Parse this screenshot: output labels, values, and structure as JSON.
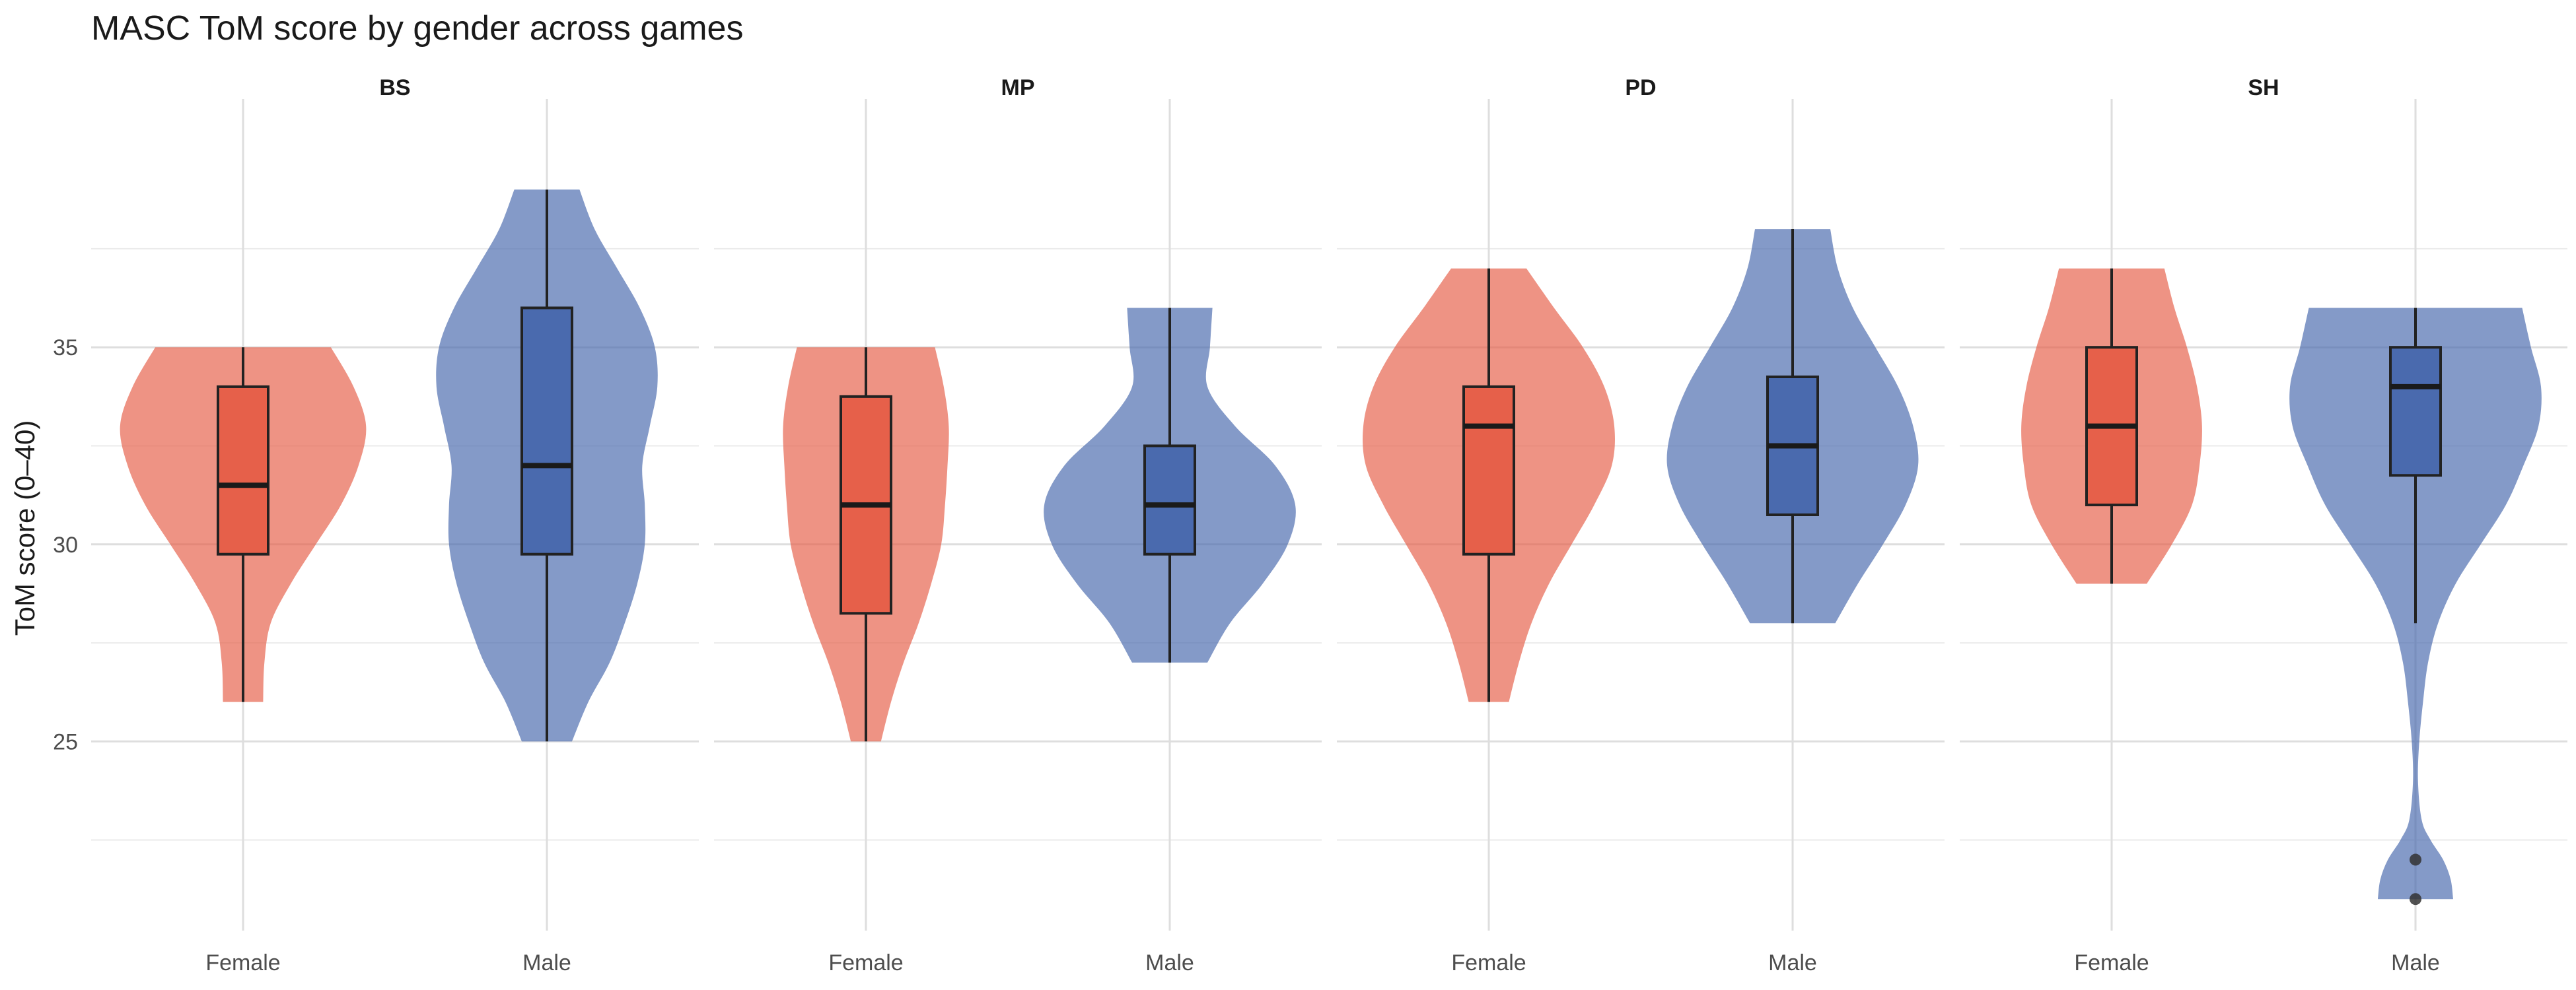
{
  "chart_data": {
    "type": "violin",
    "title": "MASC ToM score by gender across games",
    "ylabel": "ToM score (0–40)",
    "xlabel": "",
    "ylim": [
      20.2,
      41.3
    ],
    "yticks": [
      25,
      30,
      35
    ],
    "grid": true,
    "legend": "none",
    "categories": [
      "Female",
      "Male"
    ],
    "colors": {
      "Female": "#E6604A",
      "Male": "#4A6AAE"
    },
    "panels": [
      {
        "name": "BS",
        "groups": [
          {
            "category": "Female",
            "min": 26,
            "q1": 29.75,
            "median": 31.5,
            "q3": 34,
            "max": 35,
            "outliers": [],
            "density": [
              [
                26,
                0.16
              ],
              [
                27,
                0.17
              ],
              [
                28,
                0.22
              ],
              [
                29,
                0.38
              ],
              [
                30,
                0.58
              ],
              [
                31,
                0.78
              ],
              [
                32,
                0.92
              ],
              [
                33,
                0.98
              ],
              [
                34,
                0.88
              ],
              [
                35,
                0.7
              ]
            ]
          },
          {
            "category": "Male",
            "min": 25,
            "q1": 29.75,
            "median": 32,
            "q3": 36,
            "max": 39,
            "outliers": [],
            "density": [
              [
                25,
                0.2
              ],
              [
                26,
                0.33
              ],
              [
                27,
                0.5
              ],
              [
                28,
                0.62
              ],
              [
                29,
                0.72
              ],
              [
                30,
                0.78
              ],
              [
                31,
                0.78
              ],
              [
                32,
                0.76
              ],
              [
                33,
                0.82
              ],
              [
                34,
                0.88
              ],
              [
                35,
                0.86
              ],
              [
                36,
                0.74
              ],
              [
                37,
                0.56
              ],
              [
                38,
                0.38
              ],
              [
                39,
                0.26
              ]
            ]
          }
        ]
      },
      {
        "name": "MP",
        "groups": [
          {
            "category": "Female",
            "min": 25,
            "q1": 28.25,
            "median": 31,
            "q3": 33.75,
            "max": 35,
            "outliers": [],
            "density": [
              [
                25,
                0.12
              ],
              [
                26,
                0.2
              ],
              [
                27,
                0.3
              ],
              [
                28,
                0.42
              ],
              [
                29,
                0.52
              ],
              [
                30,
                0.6
              ],
              [
                31,
                0.63
              ],
              [
                32,
                0.65
              ],
              [
                33,
                0.66
              ],
              [
                34,
                0.62
              ],
              [
                35,
                0.55
              ]
            ]
          },
          {
            "category": "Male",
            "min": 27,
            "q1": 29.75,
            "median": 31,
            "q3": 32.5,
            "max": 36,
            "outliers": [],
            "density": [
              [
                27,
                0.3
              ],
              [
                28,
                0.48
              ],
              [
                29,
                0.74
              ],
              [
                30,
                0.94
              ],
              [
                31,
                1.0
              ],
              [
                32,
                0.84
              ],
              [
                33,
                0.52
              ],
              [
                34,
                0.3
              ],
              [
                35,
                0.32
              ],
              [
                36,
                0.34
              ]
            ]
          }
        ]
      },
      {
        "name": "PD",
        "groups": [
          {
            "category": "Female",
            "min": 26,
            "q1": 29.75,
            "median": 33,
            "q3": 34,
            "max": 37,
            "outliers": [],
            "density": [
              [
                26,
                0.16
              ],
              [
                27,
                0.24
              ],
              [
                28,
                0.34
              ],
              [
                29,
                0.48
              ],
              [
                30,
                0.66
              ],
              [
                31,
                0.84
              ],
              [
                32,
                0.98
              ],
              [
                33,
                1.0
              ],
              [
                34,
                0.92
              ],
              [
                35,
                0.75
              ],
              [
                36,
                0.52
              ],
              [
                37,
                0.3
              ]
            ]
          },
          {
            "category": "Male",
            "min": 28,
            "q1": 30.75,
            "median": 32.5,
            "q3": 34.25,
            "max": 38,
            "outliers": [],
            "density": [
              [
                28,
                0.34
              ],
              [
                29,
                0.52
              ],
              [
                30,
                0.72
              ],
              [
                31,
                0.9
              ],
              [
                32,
                1.0
              ],
              [
                33,
                0.96
              ],
              [
                34,
                0.84
              ],
              [
                35,
                0.66
              ],
              [
                36,
                0.48
              ],
              [
                37,
                0.36
              ],
              [
                38,
                0.3
              ]
            ]
          }
        ]
      },
      {
        "name": "SH",
        "groups": [
          {
            "category": "Female",
            "min": 29,
            "q1": 31,
            "median": 33,
            "q3": 35,
            "max": 37,
            "outliers": [],
            "density": [
              [
                29,
                0.28
              ],
              [
                30,
                0.48
              ],
              [
                31,
                0.64
              ],
              [
                32,
                0.7
              ],
              [
                33,
                0.72
              ],
              [
                34,
                0.68
              ],
              [
                35,
                0.6
              ],
              [
                36,
                0.5
              ],
              [
                37,
                0.42
              ]
            ]
          },
          {
            "category": "Male",
            "min": 28,
            "q1": 31.75,
            "median": 34,
            "q3": 35,
            "max": 36,
            "outliers": [
              22,
              21
            ],
            "density": [
              [
                21,
                0.3
              ],
              [
                21.5,
                0.28
              ],
              [
                22,
                0.22
              ],
              [
                22.5,
                0.12
              ],
              [
                23,
                0.05
              ],
              [
                24,
                0.02
              ],
              [
                25,
                0.03
              ],
              [
                26,
                0.06
              ],
              [
                27,
                0.1
              ],
              [
                28,
                0.18
              ],
              [
                29,
                0.32
              ],
              [
                30,
                0.52
              ],
              [
                31,
                0.72
              ],
              [
                32,
                0.86
              ],
              [
                33,
                0.98
              ],
              [
                34,
                1.0
              ],
              [
                35,
                0.92
              ],
              [
                36,
                0.85
              ]
            ]
          }
        ]
      }
    ]
  }
}
